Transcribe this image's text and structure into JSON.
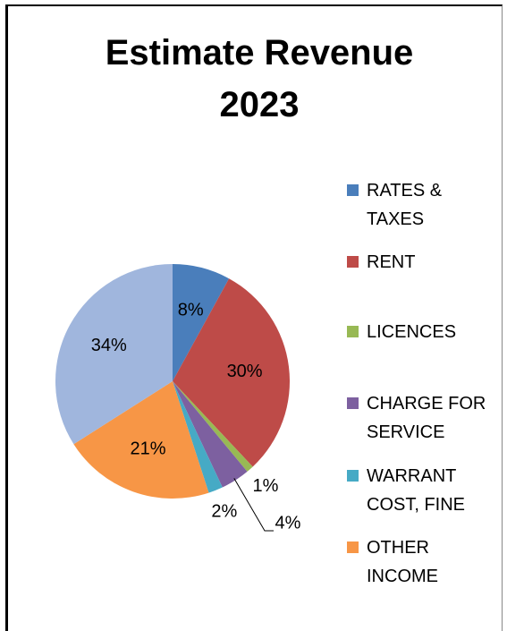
{
  "chart_data": {
    "type": "pie",
    "title": "Estimate Revenue 2023",
    "categories": [
      "RATES & TAXES",
      "RENT",
      "LICENCES",
      "CHARGE FOR SERVICE",
      "WARRANT COST, FINE",
      "OTHER INCOME",
      null
    ],
    "values": [
      8,
      30,
      1,
      4,
      2,
      21,
      34
    ],
    "value_labels": [
      "8%",
      "30%",
      "1%",
      "4%",
      "2%",
      "21%",
      "34%"
    ],
    "colors": [
      "#4a7ebb",
      "#be4b48",
      "#98b954",
      "#7d60a0",
      "#46aac5",
      "#f79646",
      "#a0b6dd"
    ],
    "legend": "right"
  }
}
